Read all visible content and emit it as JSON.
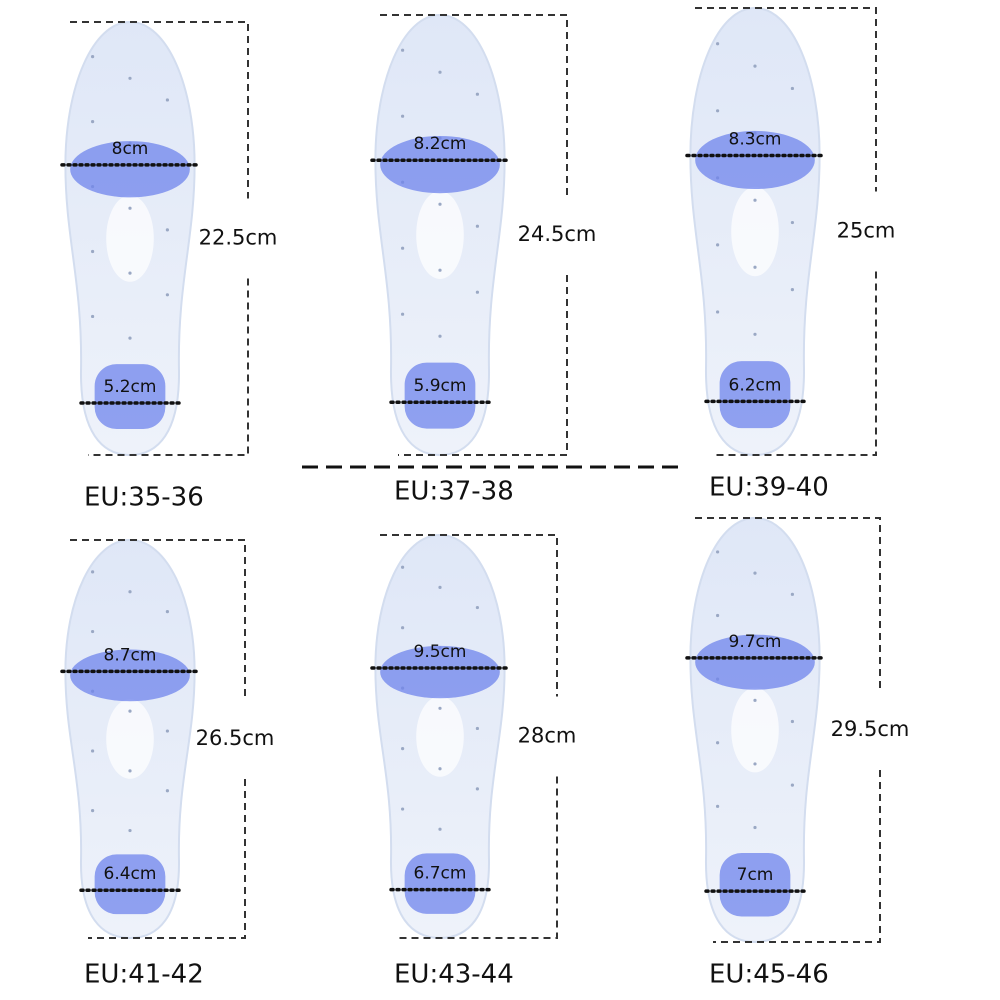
{
  "insoles": [
    {
      "size": "EU:35-36",
      "length": "22.5cm",
      "forefoot_width": "8cm",
      "heel_width": "5.2cm"
    },
    {
      "size": "EU:37-38",
      "length": "24.5cm",
      "forefoot_width": "8.2cm",
      "heel_width": "5.9cm"
    },
    {
      "size": "EU:39-40",
      "length": "25cm",
      "forefoot_width": "8.3cm",
      "heel_width": "6.2cm"
    },
    {
      "size": "EU:41-42",
      "length": "26.5cm",
      "forefoot_width": "8.7cm",
      "heel_width": "6.4cm"
    },
    {
      "size": "EU:43-44",
      "length": "28cm",
      "forefoot_width": "9.5cm",
      "heel_width": "6.7cm"
    },
    {
      "size": "EU:45-46",
      "length": "29.5cm",
      "forefoot_width": "9.7cm",
      "heel_width": "7cm"
    }
  ]
}
